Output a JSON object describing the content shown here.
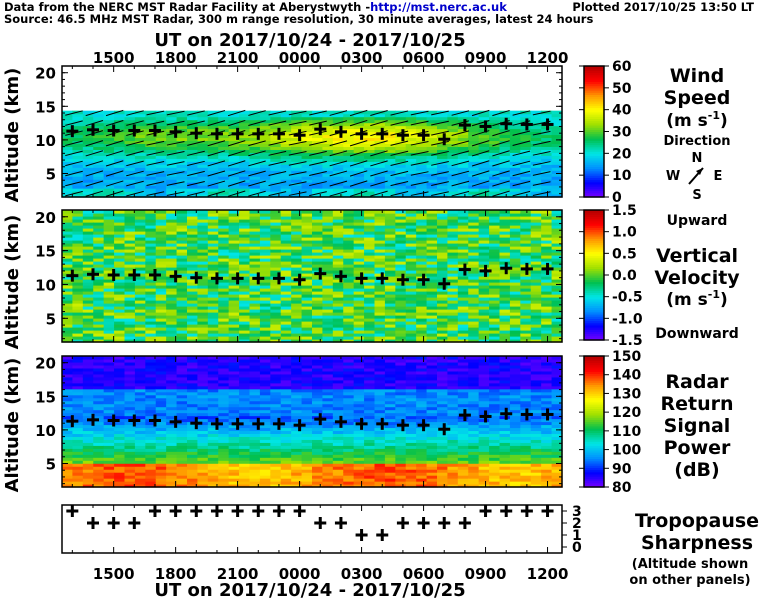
{
  "header": {
    "line1_prefix": "Data from the NERC MST Radar Facility at Aberystwyth -",
    "link": "http://mst.nerc.ac.uk",
    "plotted": "Plotted 2017/10/25 13:50 LT",
    "line2": "Source: 46.5 MHz MST Radar, 300 m range resolution, 30 minute averages, latest 24 hours"
  },
  "axis_title": "UT on 2017/10/24 - 2017/10/25",
  "time_ticks": [
    "1500",
    "1800",
    "2100",
    "0000",
    "0300",
    "0600",
    "0900",
    "1200"
  ],
  "altitude_ticks": [
    "5",
    "10",
    "15",
    "20"
  ],
  "ylabel": "Altitude (km)",
  "panels": {
    "wind": {
      "cbar_ticks": [
        "0",
        "10",
        "20",
        "30",
        "40",
        "50",
        "60"
      ],
      "title_lines": [
        "Wind",
        "Speed"
      ],
      "unit": "(m s-1)",
      "direction_label": "Direction",
      "compass": {
        "n": "N",
        "s": "S",
        "e": "E",
        "w": "W"
      }
    },
    "vertical": {
      "cbar_ticks": [
        "-1.5",
        "-1.0",
        "-0.5",
        "0.0",
        "0.5",
        "1.0",
        "1.5"
      ],
      "upward": "Upward",
      "title_lines": [
        "Vertical",
        "Velocity"
      ],
      "unit": "(m s-1)",
      "downward": "Downward"
    },
    "power": {
      "cbar_ticks": [
        "80",
        "90",
        "100",
        "110",
        "120",
        "130",
        "140",
        "150"
      ],
      "title_lines": [
        "Radar",
        "Return",
        "Signal",
        "Power",
        "(dB)"
      ]
    },
    "sharpness": {
      "yticks": [
        "0",
        "1",
        "2",
        "3"
      ],
      "title_lines": [
        "Tropopause",
        "Sharpness"
      ],
      "note_lines": [
        "(Altitude shown",
        "on other panels)"
      ]
    }
  },
  "chart_data": {
    "type": "heatmap",
    "title": "UT on 2017/10/24 - 2017/10/25",
    "x_range_hours": [
      12.5,
      36.7
    ],
    "y_range_km": [
      1.5,
      21
    ],
    "tropopause": {
      "time_hours": [
        13,
        14,
        15,
        16,
        17,
        18,
        19,
        20,
        21,
        22,
        23,
        24,
        25,
        26,
        27,
        28,
        29,
        30,
        31,
        32,
        33,
        34,
        35,
        36
      ],
      "altitude_km": [
        11.3,
        11.5,
        11.4,
        11.4,
        11.4,
        11.2,
        11.0,
        10.9,
        10.9,
        10.9,
        10.9,
        10.7,
        11.6,
        11.2,
        10.9,
        10.9,
        10.7,
        10.7,
        10.1,
        12.2,
        12.0,
        12.4,
        12.3,
        12.3
      ],
      "sharpness": [
        3,
        2,
        2,
        2,
        3,
        3,
        3,
        3,
        3,
        3,
        3,
        3,
        2,
        2,
        1,
        1,
        2,
        2,
        2,
        2,
        3,
        3,
        3,
        3
      ]
    },
    "wind_speed_ms": {
      "range": [
        0,
        60
      ],
      "jet_core_altitude_km": 10,
      "data_top_km": 14.5
    },
    "vertical_velocity_ms": {
      "range": [
        -1.5,
        1.5
      ]
    },
    "signal_power_db": {
      "range": [
        80,
        150
      ]
    }
  },
  "colors": {
    "scale": [
      "#7800ff",
      "#0000ff",
      "#0090ff",
      "#00e6e6",
      "#00c050",
      "#a0e000",
      "#ffff00",
      "#ff9600",
      "#ff0000",
      "#b40000"
    ]
  }
}
